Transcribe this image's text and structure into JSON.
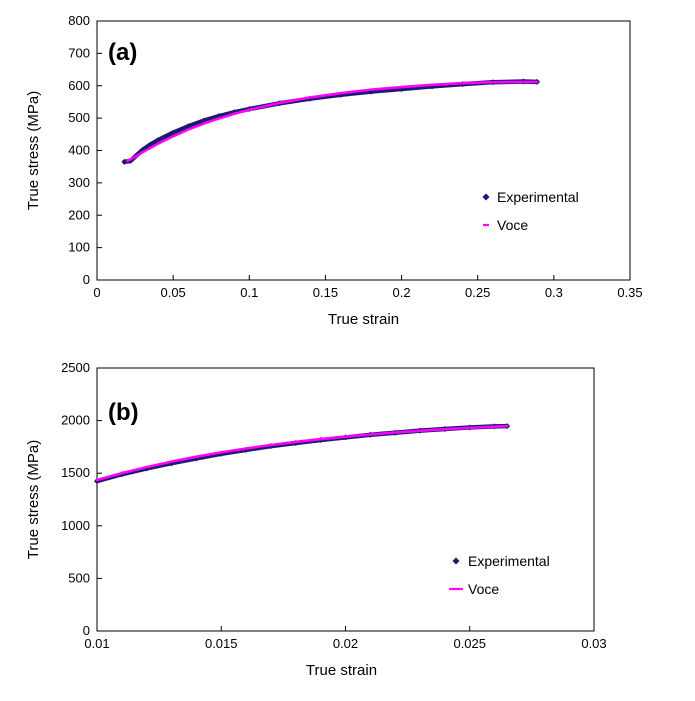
{
  "chart_data": [
    {
      "type": "scatter",
      "panel_label": "(a)",
      "xlabel": "True strain",
      "ylabel": "True stress (MPa)",
      "xlim": [
        0,
        0.35
      ],
      "ylim": [
        0,
        800
      ],
      "xticks": [
        0,
        0.05,
        0.1,
        0.15,
        0.2,
        0.25,
        0.3,
        0.35
      ],
      "yticks": [
        0,
        100,
        200,
        300,
        400,
        500,
        600,
        700,
        800
      ],
      "xtick_labels": [
        "0",
        "0.05",
        "0.1",
        "0.15",
        "0.2",
        "0.25",
        "0.3",
        "0.35"
      ],
      "ytick_labels": [
        "0",
        "100",
        "200",
        "300",
        "400",
        "500",
        "600",
        "700",
        "800"
      ],
      "grid": false,
      "legend_position": "right",
      "series": [
        {
          "name": "Experimental",
          "color": "#1a1a6e",
          "marker": "diamond",
          "x": [
            0.018,
            0.022,
            0.026,
            0.03,
            0.035,
            0.04,
            0.05,
            0.06,
            0.07,
            0.08,
            0.09,
            0.1,
            0.12,
            0.14,
            0.16,
            0.18,
            0.2,
            0.22,
            0.24,
            0.26,
            0.28,
            0.289
          ],
          "y": [
            365,
            368,
            385,
            402,
            418,
            432,
            455,
            475,
            492,
            506,
            518,
            528,
            546,
            560,
            572,
            582,
            590,
            598,
            605,
            611,
            613,
            612
          ]
        },
        {
          "name": "Voce",
          "color": "#ff00ff",
          "marker": "line",
          "x": [
            0.02,
            0.025,
            0.03,
            0.04,
            0.05,
            0.06,
            0.07,
            0.08,
            0.09,
            0.1,
            0.12,
            0.14,
            0.16,
            0.18,
            0.2,
            0.22,
            0.24,
            0.26,
            0.28,
            0.289
          ],
          "y": [
            368,
            380,
            395,
            421,
            444,
            465,
            483,
            499,
            513,
            526,
            547,
            564,
            577,
            588,
            596,
            603,
            608,
            611,
            612,
            612
          ]
        }
      ]
    },
    {
      "type": "scatter",
      "panel_label": "(b)",
      "xlabel": "True strain",
      "ylabel": "True stress (MPa)",
      "xlim": [
        0.01,
        0.03
      ],
      "ylim": [
        0,
        2500
      ],
      "xticks": [
        0.01,
        0.015,
        0.02,
        0.025,
        0.03
      ],
      "yticks": [
        0,
        500,
        1000,
        1500,
        2000,
        2500
      ],
      "xtick_labels": [
        "0.01",
        "0.015",
        "0.02",
        "0.025",
        "0.03"
      ],
      "ytick_labels": [
        "0",
        "500",
        "1000",
        "1500",
        "2000",
        "2500"
      ],
      "grid": false,
      "legend_position": "right",
      "series": [
        {
          "name": "Experimental",
          "color": "#1a1a6e",
          "marker": "diamond",
          "x": [
            0.01,
            0.011,
            0.012,
            0.013,
            0.014,
            0.015,
            0.016,
            0.017,
            0.018,
            0.019,
            0.02,
            0.021,
            0.022,
            0.023,
            0.024,
            0.025,
            0.026,
            0.0265
          ],
          "y": [
            1425,
            1490,
            1545,
            1595,
            1640,
            1685,
            1722,
            1757,
            1787,
            1815,
            1840,
            1865,
            1885,
            1905,
            1920,
            1935,
            1945,
            1948
          ]
        },
        {
          "name": "Voce",
          "color": "#ff00ff",
          "marker": "line",
          "x": [
            0.01,
            0.011,
            0.012,
            0.013,
            0.014,
            0.015,
            0.016,
            0.017,
            0.018,
            0.019,
            0.02,
            0.021,
            0.022,
            0.023,
            0.024,
            0.025,
            0.026,
            0.0265
          ],
          "y": [
            1435,
            1500,
            1558,
            1610,
            1657,
            1698,
            1735,
            1768,
            1797,
            1823,
            1847,
            1868,
            1887,
            1903,
            1918,
            1931,
            1942,
            1947
          ]
        }
      ]
    }
  ]
}
